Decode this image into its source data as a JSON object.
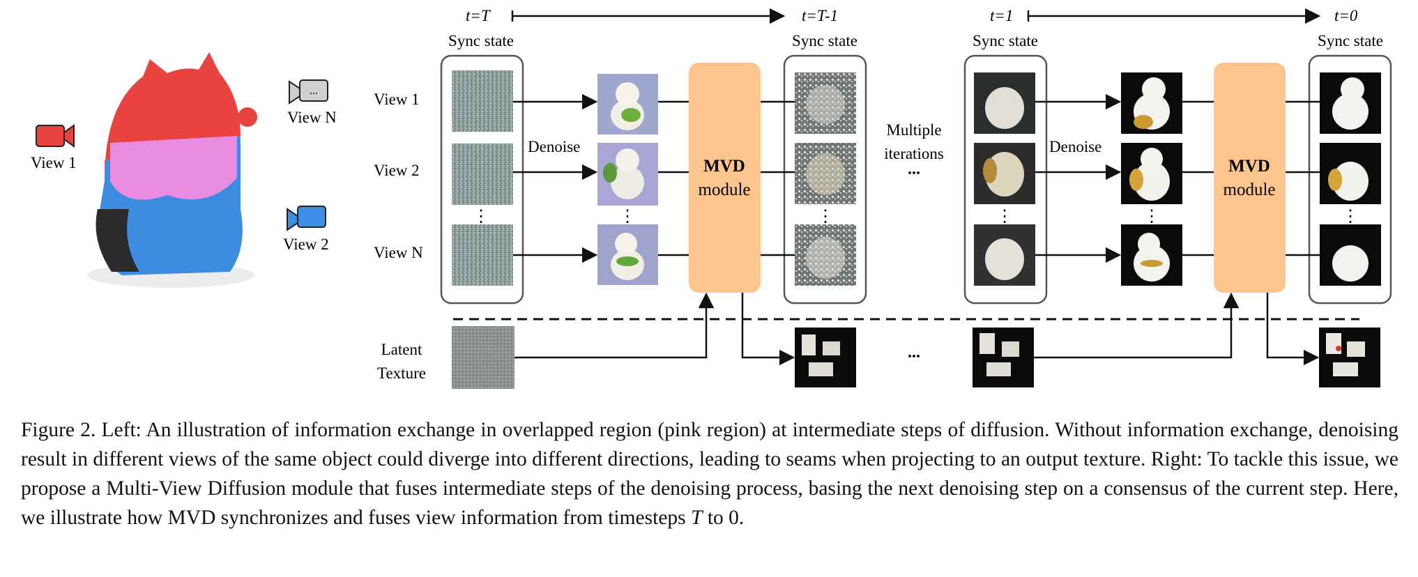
{
  "figure": {
    "left": {
      "camera_labels": [
        "View 1",
        "View N",
        "View 2"
      ]
    },
    "right": {
      "time_labels": [
        "t=T",
        "t=T-1",
        "t=1",
        "t=0"
      ],
      "sync_state_label": "Sync state",
      "view_labels": [
        "View 1",
        "View 2",
        "View N"
      ],
      "denoise_label": "Denoise",
      "mvd_label_bold": "MVD",
      "mvd_label": "module",
      "multiple_label_1": "Multiple",
      "multiple_label_2": "iterations",
      "ellipsis": "...",
      "vdots": "⋮",
      "latent_label_1": "Latent",
      "latent_label_2": "Texture"
    }
  },
  "caption": {
    "figure_number": "Figure 2.",
    "text": "Left: An illustration of information exchange in overlapped region (pink region) at intermediate steps of diffusion. Without information exchange, denoising result in different views of the same object could diverge into different directions, leading to seams when projecting to an output texture. Right: To tackle this issue, we propose a Multi-View Diffusion module that fuses intermediate steps of the denoising process, basing the next denoising step on a consensus of the current step. Here, we illustrate how MVD synchronizes and fuses view information from timesteps",
    "t_symbol": "T",
    "ending": "to 0."
  },
  "colors": {
    "mvd_fill": "#fcc58d",
    "camera_red": "#e8433f",
    "camera_blue": "#3b8ee4",
    "pink": "#e98be0",
    "noise": "#8fa6a0",
    "dark_image": "#0a0a0a"
  }
}
